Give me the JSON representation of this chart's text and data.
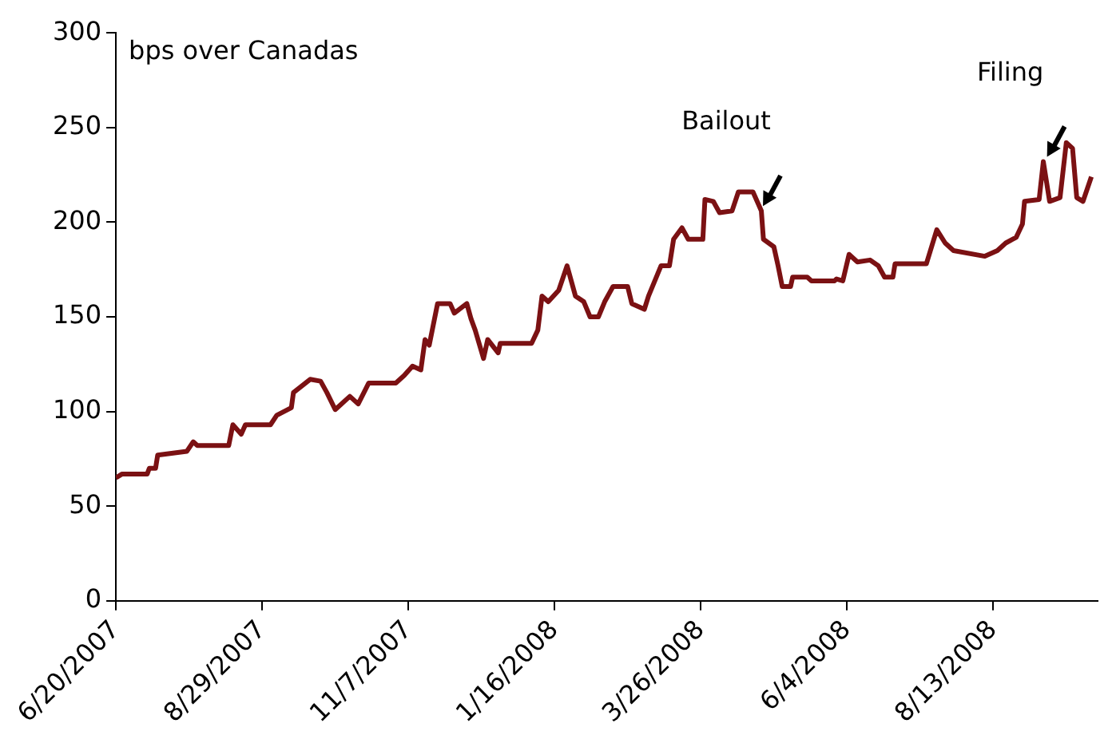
{
  "chart_data": {
    "type": "line",
    "annotations": [
      "bps over Canadas",
      {
        "text": "Bailout",
        "x": "2008-04-24",
        "y": 206
      },
      {
        "text": "Filing",
        "x": "2008-09-07",
        "y": 232
      }
    ],
    "x": [
      "2007-06-20",
      "2007-06-23",
      "2007-07-05",
      "2007-07-06",
      "2007-07-09",
      "2007-07-10",
      "2007-07-24",
      "2007-07-27",
      "2007-07-29",
      "2007-08-13",
      "2007-08-15",
      "2007-08-19",
      "2007-08-21",
      "2007-09-02",
      "2007-09-05",
      "2007-09-12",
      "2007-09-13",
      "2007-09-21",
      "2007-09-26",
      "2007-09-29",
      "2007-10-03",
      "2007-10-10",
      "2007-10-14",
      "2007-10-19",
      "2007-11-01",
      "2007-11-05",
      "2007-11-09",
      "2007-11-13",
      "2007-11-15",
      "2007-11-17",
      "2007-11-21",
      "2007-11-27",
      "2007-11-29",
      "2007-12-05",
      "2007-12-07",
      "2007-12-09",
      "2007-12-13",
      "2007-12-15",
      "2007-12-20",
      "2007-12-21",
      "2008-01-05",
      "2008-01-08",
      "2008-01-10",
      "2008-01-13",
      "2008-01-18",
      "2008-01-22",
      "2008-01-26",
      "2008-01-30",
      "2008-02-02",
      "2008-02-06",
      "2008-02-09",
      "2008-02-13",
      "2008-02-20",
      "2008-02-22",
      "2008-02-28",
      "2008-03-01",
      "2008-03-07",
      "2008-03-11",
      "2008-03-13",
      "2008-03-17",
      "2008-03-20",
      "2008-03-27",
      "2008-03-28",
      "2008-04-01",
      "2008-04-04",
      "2008-04-10",
      "2008-04-13",
      "2008-04-20",
      "2008-04-24",
      "2008-04-25",
      "2008-04-30",
      "2008-05-02",
      "2008-05-04",
      "2008-05-08",
      "2008-05-09",
      "2008-05-16",
      "2008-05-18",
      "2008-05-29",
      "2008-05-30",
      "2008-06-02",
      "2008-06-05",
      "2008-06-09",
      "2008-06-15",
      "2008-06-19",
      "2008-06-22",
      "2008-06-26",
      "2008-06-27",
      "2008-07-12",
      "2008-07-17",
      "2008-07-21",
      "2008-07-25",
      "2008-08-09",
      "2008-08-15",
      "2008-08-19",
      "2008-08-24",
      "2008-08-27",
      "2008-08-28",
      "2008-09-04",
      "2008-09-06",
      "2008-09-09",
      "2008-09-14",
      "2008-09-17",
      "2008-09-20",
      "2008-09-22",
      "2008-09-25",
      "2008-09-29"
    ],
    "series": [
      {
        "color": "#7b1113",
        "values": [
          65,
          67,
          67,
          70,
          70,
          77,
          79,
          84,
          82,
          82,
          93,
          88,
          93,
          93,
          98,
          102,
          110,
          117,
          116,
          110,
          101,
          108,
          104,
          115,
          115,
          119,
          124,
          122,
          138,
          135,
          157,
          157,
          152,
          157,
          149,
          143,
          128,
          138,
          131,
          136,
          136,
          143,
          161,
          158,
          164,
          177,
          161,
          158,
          150,
          150,
          158,
          166,
          166,
          157,
          154,
          161,
          177,
          177,
          191,
          197,
          191,
          191,
          212,
          211,
          205,
          206,
          216,
          216,
          206,
          191,
          187,
          177,
          166,
          166,
          171,
          171,
          169,
          169,
          170,
          169,
          183,
          179,
          180,
          177,
          171,
          171,
          178,
          178,
          196,
          189,
          185,
          182,
          185,
          189,
          192,
          199,
          211,
          212,
          232,
          211,
          213,
          242,
          239,
          213,
          211,
          224
        ]
      }
    ],
    "xlim": [
      "2007-06-20",
      "2008-10-02"
    ],
    "xticks": [
      {
        "value": "2007-06-20",
        "label": "6/20/2007"
      },
      {
        "value": "2007-08-29",
        "label": "8/29/2007"
      },
      {
        "value": "2007-11-07",
        "label": "11/7/2007"
      },
      {
        "value": "2008-01-16",
        "label": "1/16/2008"
      },
      {
        "value": "2008-03-26",
        "label": "3/26/2008"
      },
      {
        "value": "2008-06-04",
        "label": "6/4/2008"
      },
      {
        "value": "2008-08-13",
        "label": "8/13/2008"
      }
    ],
    "ylim": [
      0,
      300
    ],
    "yticks": [
      0,
      50,
      100,
      150,
      200,
      250,
      300
    ],
    "grid": false,
    "legend": false,
    "marker": "none",
    "line_style": "solid"
  }
}
